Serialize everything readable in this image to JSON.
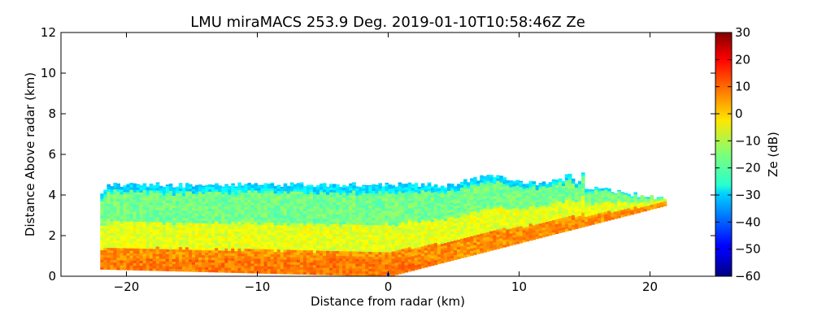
{
  "chart_data": {
    "type": "heatmap",
    "title": "LMU miraMACS 253.9 Deg. 2019-01-10T10:58:46Z  Ze",
    "xlabel": "Distance from radar (km)",
    "ylabel": "Distance Above radar  (km)",
    "xlim": [
      -25,
      25
    ],
    "ylim": [
      0,
      12
    ],
    "xticks": [
      -20,
      -10,
      0,
      10,
      20
    ],
    "xtick_labels": [
      "−20",
      "−10",
      "0",
      "10",
      "20"
    ],
    "yticks": [
      0,
      2,
      4,
      6,
      8,
      10,
      12
    ],
    "ytick_labels": [
      "0",
      "2",
      "4",
      "6",
      "8",
      "10",
      "12"
    ],
    "colorbar": {
      "label": "Ze (dB)",
      "range": [
        -60,
        30
      ],
      "ticks": [
        -60,
        -50,
        -40,
        -30,
        -20,
        -10,
        0,
        10,
        20,
        30
      ],
      "tick_labels": [
        "−60",
        "−50",
        "−40",
        "−30",
        "−20",
        "−10",
        "0",
        "10",
        "20",
        "30"
      ],
      "colormap": "jet"
    },
    "field": {
      "description_values_dB": "approximate reflectivity pattern",
      "left_edge_x_km": -22,
      "right_edge_x_km": 21.2,
      "right_edge_top_km": 3.8,
      "cloud_top_km": 4.5,
      "cloud_top_bump_km": [
        [
          5.5,
          5.0
        ],
        [
          9.0,
          5.0
        ],
        [
          14.5,
          5.1
        ]
      ],
      "ze_near_top_dB": -30,
      "ze_mid_dB": -12,
      "ze_low_dB": 2,
      "ze_bottom_dB": 8
    }
  }
}
